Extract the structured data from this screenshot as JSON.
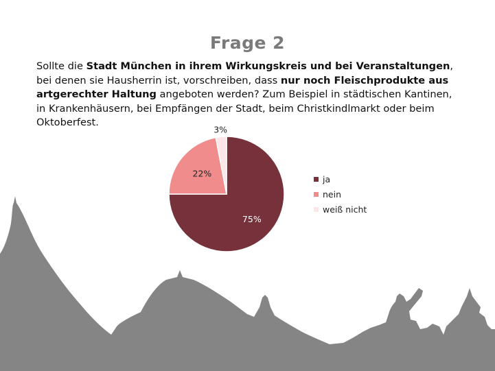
{
  "title": "Frage 2",
  "question": {
    "parts": [
      {
        "text": "Sollte die ",
        "bold": false
      },
      {
        "text": "Stadt München in ihrem Wirkungskreis und bei Veranstaltungen",
        "bold": true
      },
      {
        "text": ", bei denen sie Hausherrin ist, vorschreiben, dass ",
        "bold": false
      },
      {
        "text": "nur noch Fleischprodukte aus artgerechter Haltung",
        "bold": true
      },
      {
        "text": " angeboten werden? Zum Beispiel in städtischen Kantinen, in Krankenhäusern, bei Empfängen der Stadt, beim Christkindlmarkt oder beim Oktoberfest.",
        "bold": false
      }
    ]
  },
  "chart_data": {
    "type": "pie",
    "title": "",
    "categories": [
      "ja",
      "nein",
      "weiß nicht"
    ],
    "values": [
      75,
      22,
      3
    ],
    "labels": [
      "75%",
      "22%",
      "3%"
    ],
    "colors": [
      "#76313a",
      "#f08c8c",
      "#fde6e8"
    ],
    "label_colors": [
      "#ffffff",
      "#222222",
      "#222222"
    ],
    "start": "12 o'clock, clockwise",
    "legend_position": "right"
  },
  "background": {
    "skyline_icon": "munich-skyline-silhouette",
    "skyline_color": "#858585"
  }
}
